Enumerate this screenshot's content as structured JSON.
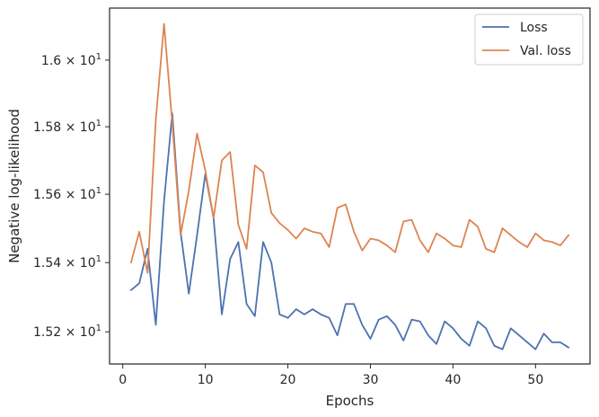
{
  "chart_data": {
    "type": "line",
    "xlabel": "Epochs",
    "ylabel": "Negative log-likelihood",
    "xlim": [
      -1.6,
      56.6
    ],
    "ylim": [
      15.108,
      16.158
    ],
    "yscale": "log",
    "grid": false,
    "legend_position": "top-right",
    "x_ticks": [
      0,
      10,
      20,
      30,
      40,
      50
    ],
    "x_tick_labels": [
      "0",
      "10",
      "20",
      "30",
      "40",
      "50"
    ],
    "y_ticks": [
      15.2,
      15.4,
      15.6,
      15.8,
      16.0
    ],
    "y_tick_labels": [
      {
        "mant": "1.52",
        "exp": "1"
      },
      {
        "mant": "1.54",
        "exp": "1"
      },
      {
        "mant": "1.56",
        "exp": "1"
      },
      {
        "mant": "1.58",
        "exp": "1"
      },
      {
        "mant": "1.6",
        "exp": "1"
      }
    ],
    "x": [
      1,
      2,
      3,
      4,
      5,
      6,
      7,
      8,
      9,
      10,
      11,
      12,
      13,
      14,
      15,
      16,
      17,
      18,
      19,
      20,
      21,
      22,
      23,
      24,
      25,
      26,
      27,
      28,
      29,
      30,
      31,
      32,
      33,
      34,
      35,
      36,
      37,
      38,
      39,
      40,
      41,
      42,
      43,
      44,
      45,
      46,
      47,
      48,
      49,
      50,
      51,
      52,
      53,
      54
    ],
    "series": [
      {
        "name": "Loss",
        "color": "#4c72b0",
        "values": [
          15.32,
          15.34,
          15.44,
          15.22,
          15.58,
          15.84,
          15.49,
          15.31,
          15.48,
          15.66,
          15.53,
          15.25,
          15.41,
          15.46,
          15.28,
          15.245,
          15.46,
          15.4,
          15.25,
          15.24,
          15.265,
          15.25,
          15.265,
          15.25,
          15.24,
          15.19,
          15.28,
          15.28,
          15.22,
          15.18,
          15.235,
          15.245,
          15.22,
          15.175,
          15.235,
          15.23,
          15.19,
          15.165,
          15.23,
          15.21,
          15.18,
          15.16,
          15.23,
          15.21,
          15.16,
          15.15,
          15.21,
          15.19,
          15.17,
          15.15,
          15.195,
          15.17,
          15.17,
          15.155
        ]
      },
      {
        "name": "Val. loss",
        "color": "#dd8452",
        "values": [
          15.4,
          15.49,
          15.37,
          15.82,
          16.11,
          15.81,
          15.48,
          15.61,
          15.78,
          15.67,
          15.53,
          15.7,
          15.725,
          15.51,
          15.44,
          15.685,
          15.665,
          15.545,
          15.515,
          15.495,
          15.47,
          15.5,
          15.49,
          15.485,
          15.445,
          15.56,
          15.57,
          15.49,
          15.435,
          15.47,
          15.465,
          15.45,
          15.43,
          15.52,
          15.525,
          15.465,
          15.43,
          15.485,
          15.47,
          15.45,
          15.445,
          15.525,
          15.505,
          15.44,
          15.43,
          15.5,
          15.48,
          15.46,
          15.445,
          15.485,
          15.465,
          15.46,
          15.45,
          15.48
        ]
      }
    ]
  }
}
